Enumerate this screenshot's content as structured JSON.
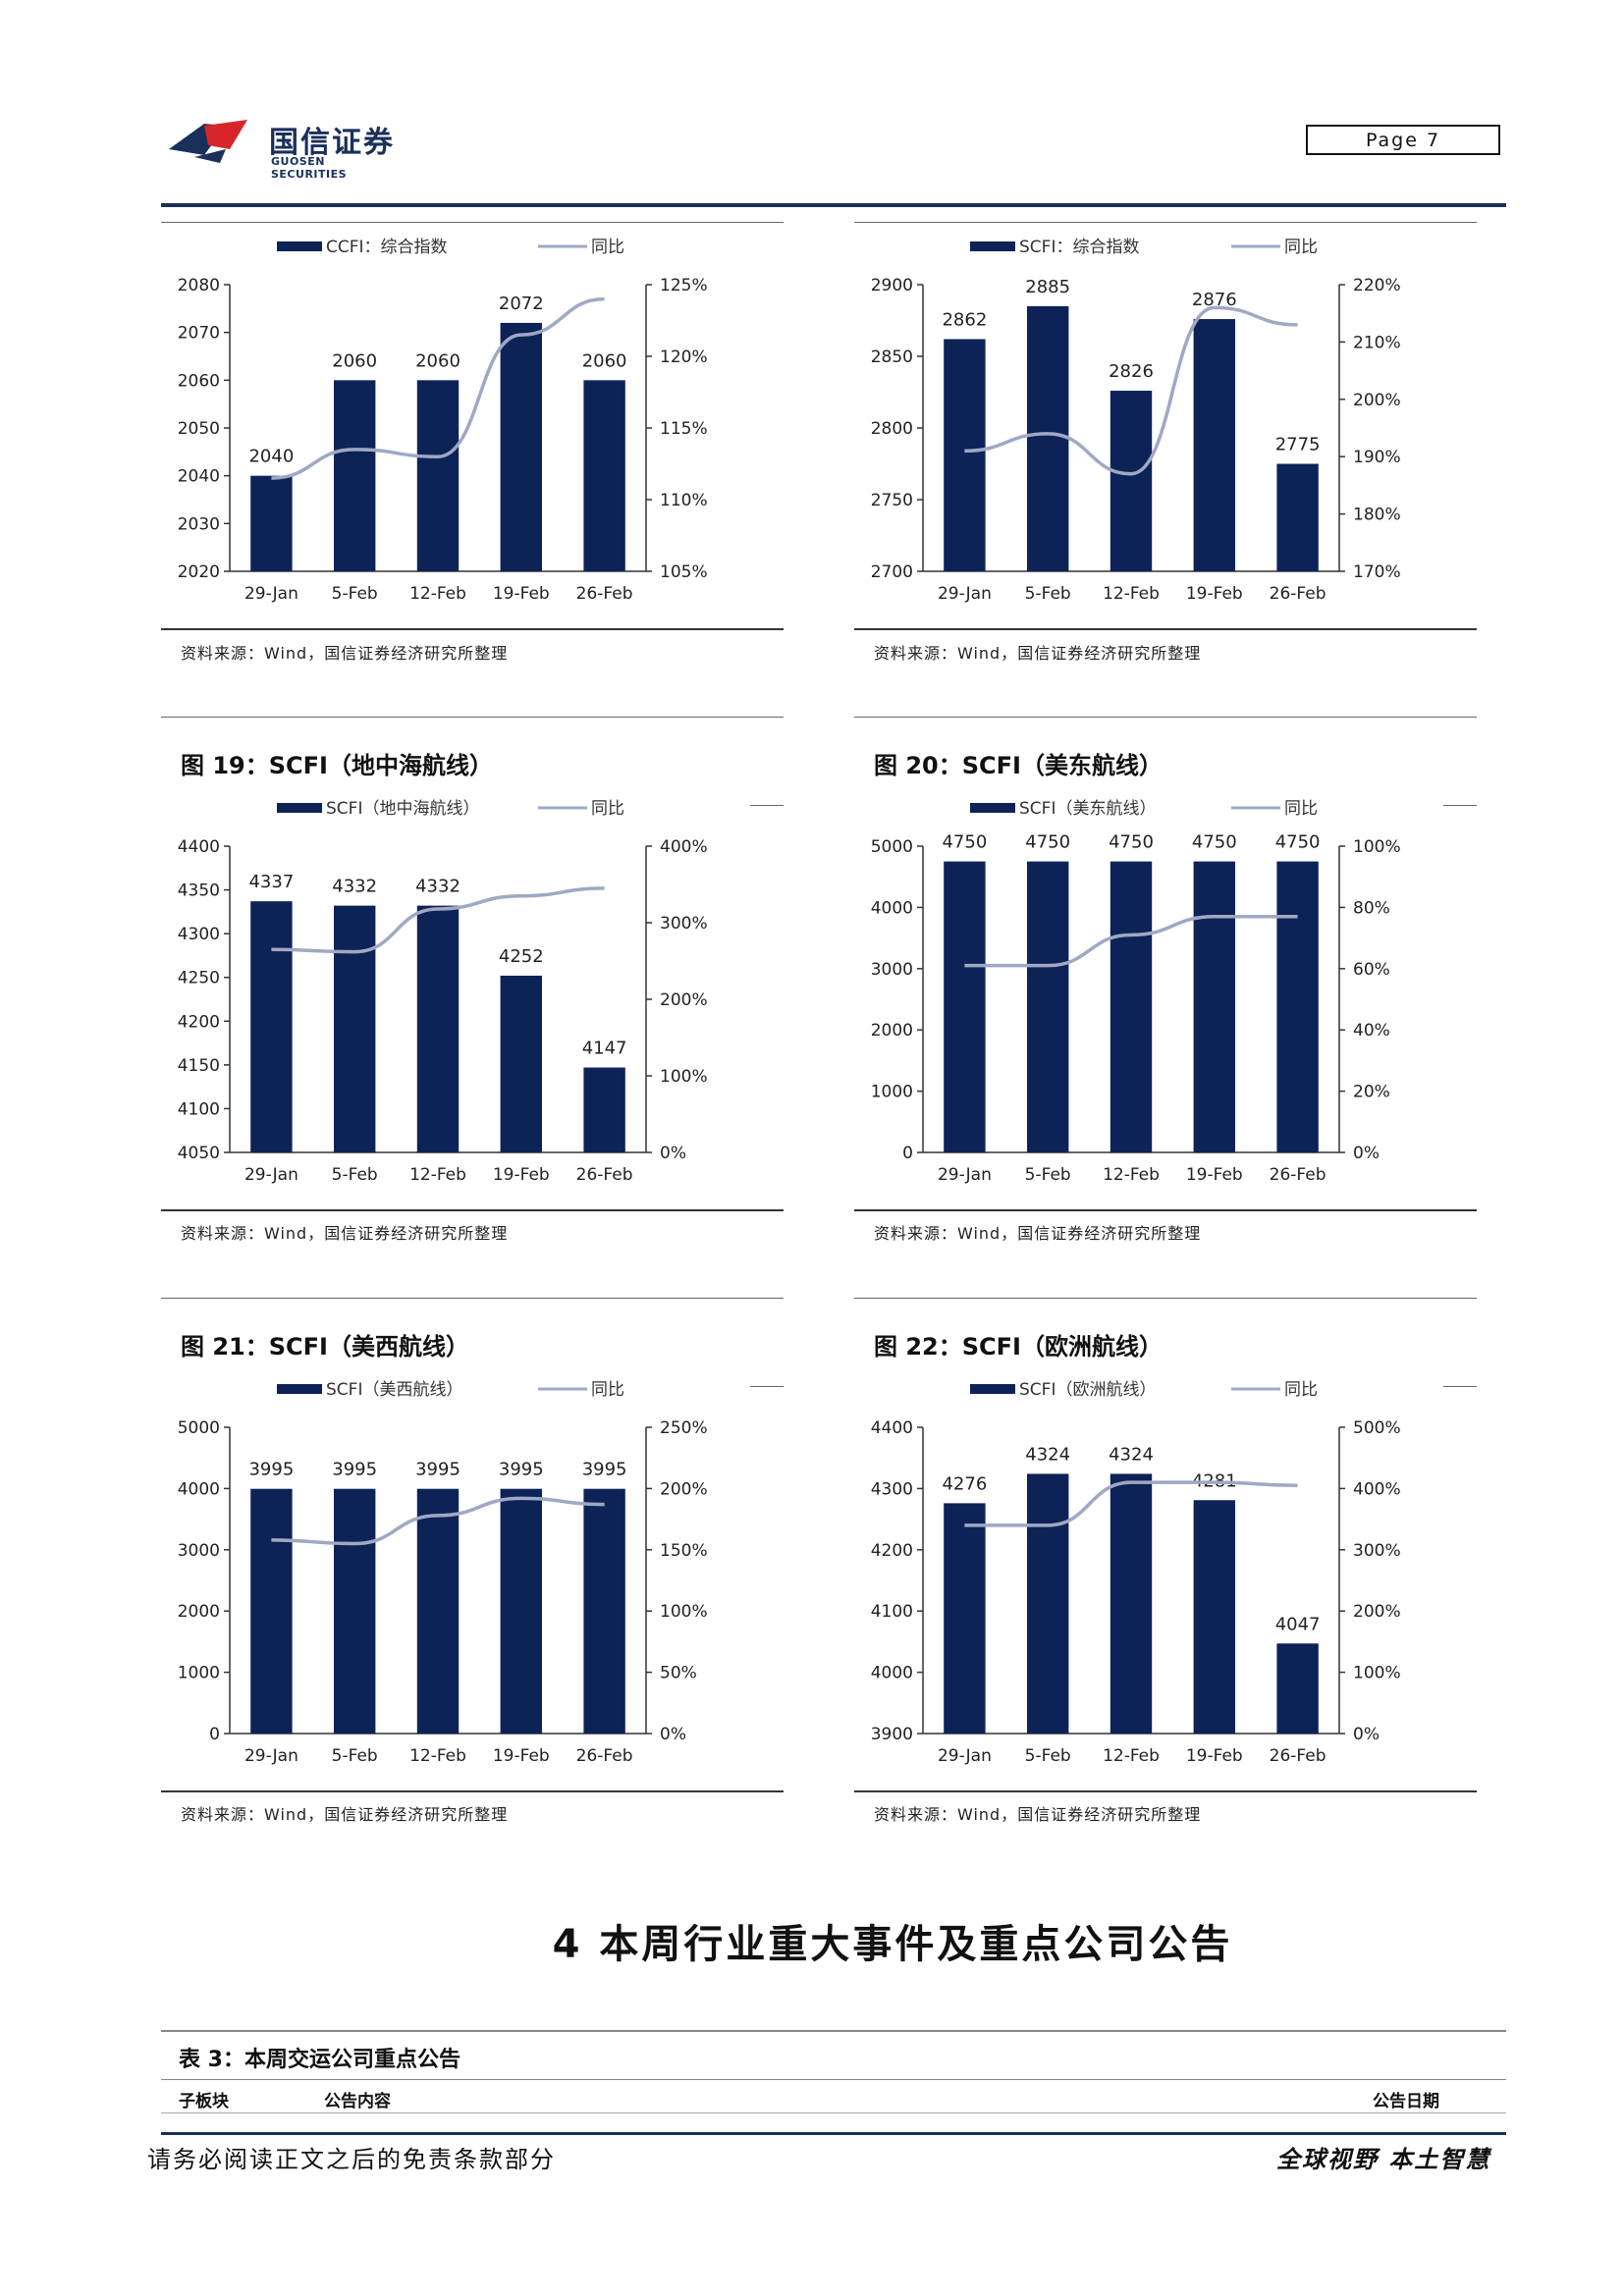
{
  "header": {
    "logo_cn": "国信证券",
    "logo_en": "GUOSEN SECURITIES",
    "page_label": "Page  7"
  },
  "colors": {
    "bar": "#0d2357",
    "line": "#9fa8c4",
    "brand": "#1a2f5a",
    "logo_red": "#d7262a"
  },
  "charts": [
    {
      "fig_title": "",
      "source": "资料来源：Wind，国信证券经济研究所整理",
      "chart_data": {
        "type": "bar",
        "categories": [
          "29-Jan",
          "5-Feb",
          "12-Feb",
          "19-Feb",
          "26-Feb"
        ],
        "series": [
          {
            "name": "CCFI：综合指数",
            "axis": "left",
            "values": [
              2040,
              2060,
              2060,
              2072,
              2060
            ]
          },
          {
            "name": "同比",
            "axis": "right",
            "type": "line",
            "values": [
              111.5,
              113.5,
              113.0,
              121.5,
              124.0
            ]
          }
        ],
        "data_labels": [
          "2040",
          "2060",
          "2060",
          "2072",
          "2060"
        ],
        "ylim": [
          2020,
          2080
        ],
        "y_ticks": [
          "2020",
          "2030",
          "2040",
          "2050",
          "2060",
          "2070",
          "2080"
        ],
        "y2lim": [
          105,
          125
        ],
        "y2_ticks": [
          "105%",
          "110%",
          "115%",
          "120%",
          "125%"
        ],
        "legend": "top"
      }
    },
    {
      "fig_title": "",
      "source": "资料来源：Wind，国信证券经济研究所整理",
      "chart_data": {
        "type": "bar",
        "categories": [
          "29-Jan",
          "5-Feb",
          "12-Feb",
          "19-Feb",
          "26-Feb"
        ],
        "series": [
          {
            "name": "SCFI：综合指数",
            "axis": "left",
            "values": [
              2862,
              2885,
              2826,
              2876,
              2775
            ]
          },
          {
            "name": "同比",
            "axis": "right",
            "type": "line",
            "values": [
              191,
              194,
              187,
              216,
              213
            ]
          }
        ],
        "data_labels": [
          "2862",
          "2885",
          "2826",
          "2876",
          "2775"
        ],
        "ylim": [
          2700,
          2900
        ],
        "y_ticks": [
          "2700",
          "2750",
          "2800",
          "2850",
          "2900"
        ],
        "y2lim": [
          170,
          220
        ],
        "y2_ticks": [
          "170%",
          "180%",
          "190%",
          "200%",
          "210%",
          "220%"
        ],
        "legend": "top"
      }
    },
    {
      "fig_title": "图 19：SCFI（地中海航线）",
      "source": "资料来源：Wind，国信证券经济研究所整理",
      "chart_data": {
        "type": "bar",
        "categories": [
          "29-Jan",
          "5-Feb",
          "12-Feb",
          "19-Feb",
          "26-Feb"
        ],
        "series": [
          {
            "name": "SCFI（地中海航线）",
            "axis": "left",
            "values": [
              4337,
              4332,
              4332,
              4252,
              4147
            ]
          },
          {
            "name": "同比",
            "axis": "right",
            "type": "line",
            "values": [
              265,
              262,
              318,
              335,
              345
            ]
          }
        ],
        "data_labels": [
          "4337",
          "4332",
          "4332",
          "4252",
          "4147"
        ],
        "ylim": [
          4050,
          4400
        ],
        "y_ticks": [
          "4050",
          "4100",
          "4150",
          "4200",
          "4250",
          "4300",
          "4350",
          "4400"
        ],
        "y2lim": [
          0,
          400
        ],
        "y2_ticks": [
          "0%",
          "100%",
          "200%",
          "300%",
          "400%"
        ],
        "legend": "top"
      }
    },
    {
      "fig_title": "图 20：SCFI（美东航线）",
      "source": "资料来源：Wind，国信证券经济研究所整理",
      "chart_data": {
        "type": "bar",
        "categories": [
          "29-Jan",
          "5-Feb",
          "12-Feb",
          "19-Feb",
          "26-Feb"
        ],
        "series": [
          {
            "name": "SCFI（美东航线）",
            "axis": "left",
            "values": [
              4750,
              4750,
              4750,
              4750,
              4750
            ]
          },
          {
            "name": "同比",
            "axis": "right",
            "type": "line",
            "values": [
              61,
              61,
              71,
              77,
              77
            ]
          }
        ],
        "data_labels": [
          "4750",
          "4750",
          "4750",
          "4750",
          "4750"
        ],
        "ylim": [
          0,
          5000
        ],
        "y_ticks": [
          "0",
          "1000",
          "2000",
          "3000",
          "4000",
          "5000"
        ],
        "y2lim": [
          0,
          100
        ],
        "y2_ticks": [
          "0%",
          "20%",
          "40%",
          "60%",
          "80%",
          "100%"
        ],
        "legend": "top"
      }
    },
    {
      "fig_title": "图 21：SCFI（美西航线）",
      "source": "资料来源：Wind，国信证券经济研究所整理",
      "chart_data": {
        "type": "bar",
        "categories": [
          "29-Jan",
          "5-Feb",
          "12-Feb",
          "19-Feb",
          "26-Feb"
        ],
        "series": [
          {
            "name": "SCFI（美西航线）",
            "axis": "left",
            "values": [
              3995,
              3995,
              3995,
              3995,
              3995
            ]
          },
          {
            "name": "同比",
            "axis": "right",
            "type": "line",
            "values": [
              158,
              155,
              178,
              192,
              187
            ]
          }
        ],
        "data_labels": [
          "3995",
          "3995",
          "3995",
          "3995",
          "3995"
        ],
        "ylim": [
          0,
          5000
        ],
        "y_ticks": [
          "0",
          "1000",
          "2000",
          "3000",
          "4000",
          "5000"
        ],
        "y2lim": [
          0,
          250
        ],
        "y2_ticks": [
          "0%",
          "50%",
          "100%",
          "150%",
          "200%",
          "250%"
        ],
        "legend": "top"
      }
    },
    {
      "fig_title": "图 22：SCFI（欧洲航线）",
      "source": "资料来源：Wind，国信证券经济研究所整理",
      "chart_data": {
        "type": "bar",
        "categories": [
          "29-Jan",
          "5-Feb",
          "12-Feb",
          "19-Feb",
          "26-Feb"
        ],
        "series": [
          {
            "name": "SCFI（欧洲航线）",
            "axis": "left",
            "values": [
              4276,
              4324,
              4324,
              4281,
              4047
            ]
          },
          {
            "name": "同比",
            "axis": "right",
            "type": "line",
            "values": [
              340,
              340,
              410,
              410,
              405
            ]
          }
        ],
        "data_labels": [
          "4276",
          "4324",
          "4324",
          "4281",
          "4047"
        ],
        "ylim": [
          3900,
          4400
        ],
        "y_ticks": [
          "3900",
          "4000",
          "4100",
          "4200",
          "4300",
          "4400"
        ],
        "y2lim": [
          0,
          500
        ],
        "y2_ticks": [
          "0%",
          "100%",
          "200%",
          "300%",
          "400%",
          "500%"
        ],
        "legend": "top"
      }
    }
  ],
  "section": {
    "heading": "4 本周行业重大事件及重点公司公告"
  },
  "table": {
    "title": "表 3：本周交运公司重点公告",
    "col_sub": "子板块",
    "col_content": "公告内容",
    "col_date": "公告日期"
  },
  "footer": {
    "left": "请务必阅读正文之后的免责条款部分",
    "right": "全球视野  本土智慧"
  }
}
